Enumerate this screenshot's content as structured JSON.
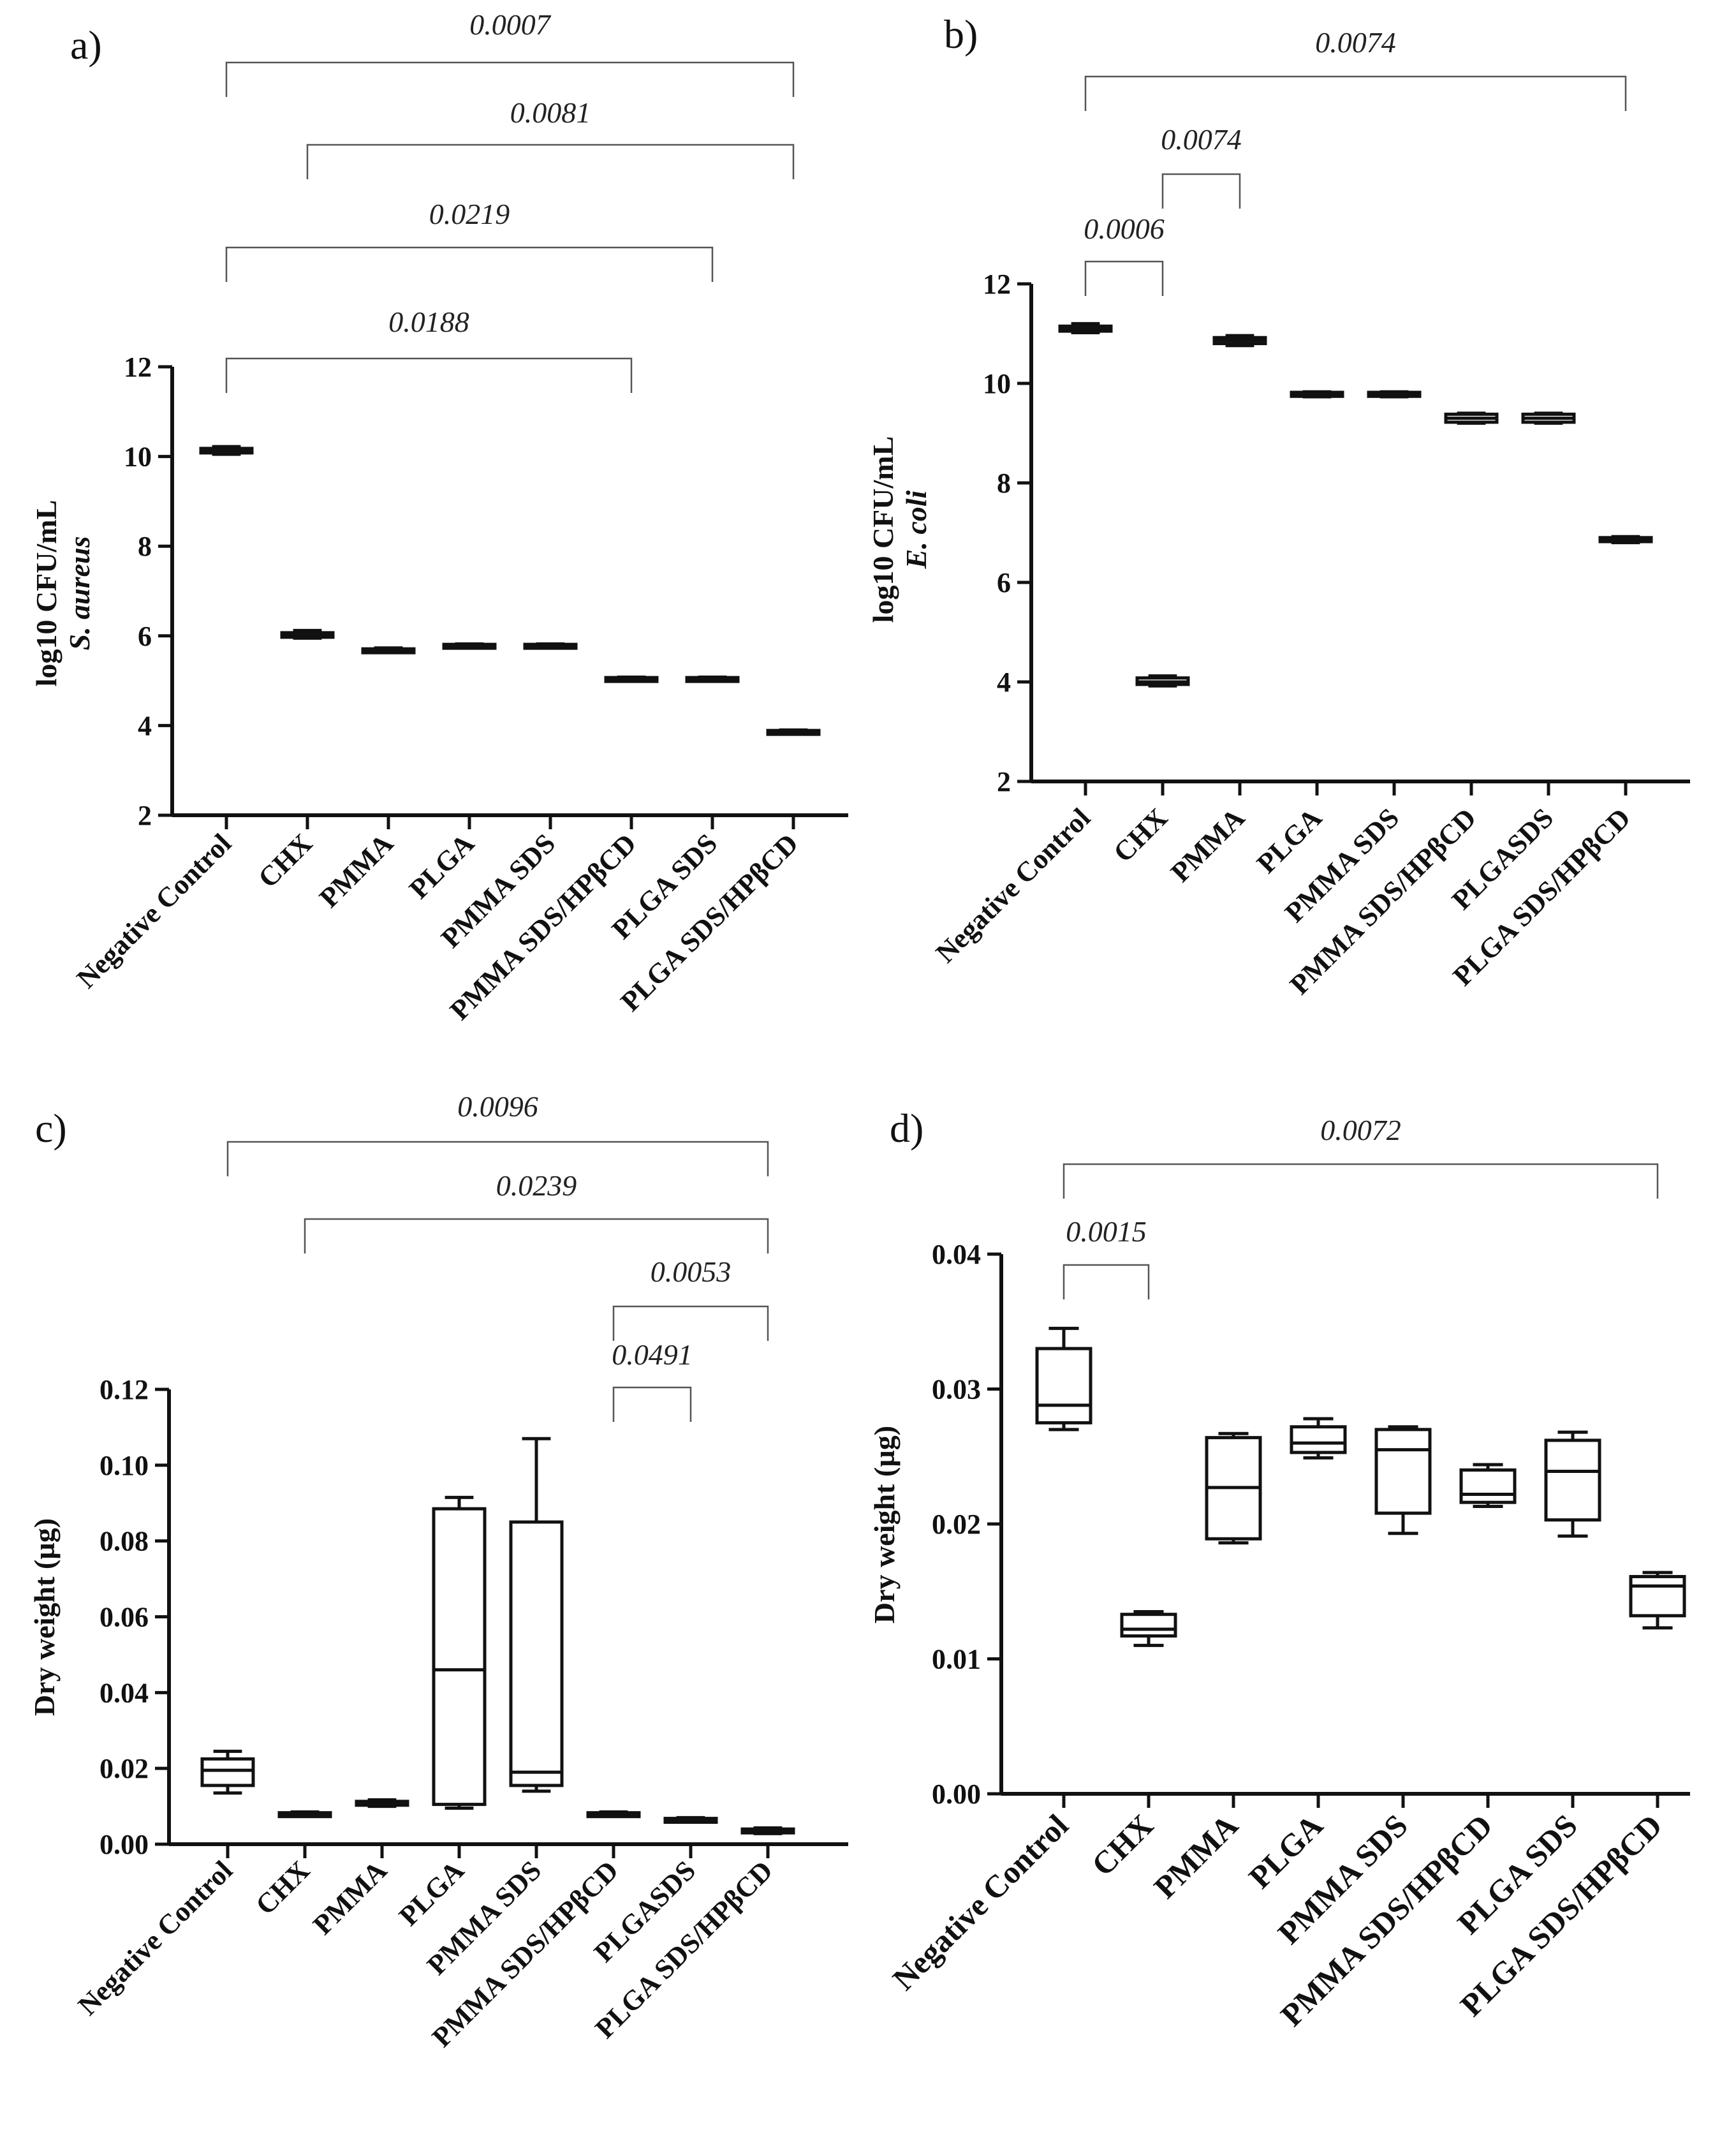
{
  "chart_data": [
    {
      "panel": "a)",
      "type": "box",
      "ylabel_line1": "log10 CFU/mL",
      "ylabel_line2": "S. aureus",
      "ylim": [
        2,
        12
      ],
      "yticks": [
        "2",
        "4",
        "6",
        "8",
        "10",
        "12"
      ],
      "yticks_values": [
        2,
        4,
        6,
        8,
        10,
        12
      ],
      "categories": [
        "Negative Control",
        "CHX",
        "PMMA",
        "PLGA",
        "PMMA SDS",
        "PMMA SDS/HPβCD",
        "PLGA SDS",
        "PLGA SDS/HPβCD"
      ],
      "boxes": [
        {
          "min": 10.05,
          "q1": 10.08,
          "median": 10.13,
          "q3": 10.18,
          "max": 10.22
        },
        {
          "min": 5.95,
          "q1": 5.97,
          "median": 6.02,
          "q3": 6.07,
          "max": 6.12
        },
        {
          "min": 5.63,
          "q1": 5.65,
          "median": 5.68,
          "q3": 5.71,
          "max": 5.73
        },
        {
          "min": 5.74,
          "q1": 5.75,
          "median": 5.78,
          "q3": 5.81,
          "max": 5.82
        },
        {
          "min": 5.74,
          "q1": 5.75,
          "median": 5.78,
          "q3": 5.81,
          "max": 5.82
        },
        {
          "min": 5.0,
          "q1": 5.01,
          "median": 5.04,
          "q3": 5.07,
          "max": 5.08
        },
        {
          "min": 5.0,
          "q1": 5.01,
          "median": 5.04,
          "q3": 5.07,
          "max": 5.08
        },
        {
          "min": 3.82,
          "q1": 3.83,
          "median": 3.86,
          "q3": 3.89,
          "max": 3.9
        }
      ],
      "comparisons": [
        {
          "from": 0,
          "to": 7,
          "p": "0.0007"
        },
        {
          "from": 1,
          "to": 7,
          "p": "0.0081"
        },
        {
          "from": 0,
          "to": 6,
          "p": "0.0219"
        },
        {
          "from": 0,
          "to": 5,
          "p": "0.0188"
        }
      ]
    },
    {
      "panel": "b)",
      "type": "box",
      "ylabel_line1": "log10 CFU/mL",
      "ylabel_line2": "E. coli",
      "ylim": [
        2,
        12
      ],
      "yticks": [
        "2",
        "4",
        "6",
        "8",
        "10",
        "12"
      ],
      "yticks_values": [
        2,
        4,
        6,
        8,
        10,
        12
      ],
      "categories": [
        "Negative Control",
        "CHX",
        "PMMA",
        "PLGA",
        "PMMA SDS",
        "PMMA SDS/HPβCD",
        "PLGASDS",
        "PLGA SDS/HPβCD"
      ],
      "boxes": [
        {
          "min": 11.02,
          "q1": 11.05,
          "median": 11.1,
          "q3": 11.15,
          "max": 11.2
        },
        {
          "min": 3.92,
          "q1": 3.95,
          "median": 4.0,
          "q3": 4.08,
          "max": 4.12
        },
        {
          "min": 10.76,
          "q1": 10.8,
          "median": 10.86,
          "q3": 10.92,
          "max": 10.96
        },
        {
          "min": 9.73,
          "q1": 9.74,
          "median": 9.78,
          "q3": 9.82,
          "max": 9.83
        },
        {
          "min": 9.73,
          "q1": 9.74,
          "median": 9.78,
          "q3": 9.82,
          "max": 9.83
        },
        {
          "min": 9.2,
          "q1": 9.22,
          "median": 9.3,
          "q3": 9.38,
          "max": 9.4
        },
        {
          "min": 9.2,
          "q1": 9.22,
          "median": 9.3,
          "q3": 9.38,
          "max": 9.4
        },
        {
          "min": 6.8,
          "q1": 6.82,
          "median": 6.86,
          "q3": 6.9,
          "max": 6.92
        }
      ],
      "comparisons": [
        {
          "from": 0,
          "to": 7,
          "p": "0.0074"
        },
        {
          "from": 1,
          "to": 2,
          "p": "0.0074"
        },
        {
          "from": 0,
          "to": 1,
          "p": "0.0006"
        }
      ]
    },
    {
      "panel": "c)",
      "type": "box",
      "ylabel_line1": "Dry weight (µg)",
      "ylabel_line2": "",
      "ylim": [
        0,
        0.12
      ],
      "yticks": [
        "0.00",
        "0.02",
        "0.04",
        "0.06",
        "0.08",
        "0.10",
        "0.12"
      ],
      "yticks_values": [
        0,
        0.02,
        0.04,
        0.06,
        0.08,
        0.1,
        0.12
      ],
      "categories": [
        "Negative Control",
        "CHX",
        "PMMA",
        "PLGA",
        "PMMA SDS",
        "PMMA SDS/HPβCD",
        "PLGASDS",
        "PLGA SDS/HPβCD"
      ],
      "boxes": [
        {
          "min": 0.0135,
          "q1": 0.0155,
          "median": 0.0195,
          "q3": 0.0225,
          "max": 0.0245
        },
        {
          "min": 0.0075,
          "q1": 0.0077,
          "median": 0.008,
          "q3": 0.0083,
          "max": 0.0085
        },
        {
          "min": 0.01,
          "q1": 0.0103,
          "median": 0.0108,
          "q3": 0.0113,
          "max": 0.0117
        },
        {
          "min": 0.0095,
          "q1": 0.0105,
          "median": 0.046,
          "q3": 0.0885,
          "max": 0.0915
        },
        {
          "min": 0.014,
          "q1": 0.0155,
          "median": 0.019,
          "q3": 0.085,
          "max": 0.107
        },
        {
          "min": 0.0075,
          "q1": 0.0077,
          "median": 0.008,
          "q3": 0.0083,
          "max": 0.0085
        },
        {
          "min": 0.0062,
          "q1": 0.0063,
          "median": 0.0065,
          "q3": 0.0068,
          "max": 0.007
        },
        {
          "min": 0.0028,
          "q1": 0.003,
          "median": 0.0035,
          "q3": 0.004,
          "max": 0.0043
        }
      ],
      "comparisons": [
        {
          "from": 0,
          "to": 7,
          "p": "0.0096"
        },
        {
          "from": 1,
          "to": 7,
          "p": "0.0239"
        },
        {
          "from": 5,
          "to": 7,
          "p": "0.0053"
        },
        {
          "from": 5,
          "to": 6,
          "p": "0.0491"
        }
      ]
    },
    {
      "panel": "d)",
      "type": "box",
      "ylabel_line1": "Dry weight (µg)",
      "ylabel_line2": "",
      "ylim": [
        0,
        0.04
      ],
      "yticks": [
        "0.00",
        "0.01",
        "0.02",
        "0.03",
        "0.04"
      ],
      "yticks_values": [
        0,
        0.01,
        0.02,
        0.03,
        0.04
      ],
      "categories": [
        "Negative Control",
        "CHX",
        "PMMA",
        "PLGA",
        "PMMA SDS",
        "PMMA SDS/HPβCD",
        "PLGA SDS",
        "PLGA SDS/HPβCD"
      ],
      "boxes": [
        {
          "min": 0.027,
          "q1": 0.0275,
          "median": 0.0288,
          "q3": 0.033,
          "max": 0.0345
        },
        {
          "min": 0.011,
          "q1": 0.0117,
          "median": 0.0122,
          "q3": 0.0133,
          "max": 0.0135
        },
        {
          "min": 0.0186,
          "q1": 0.0189,
          "median": 0.0227,
          "q3": 0.0264,
          "max": 0.0267
        },
        {
          "min": 0.0249,
          "q1": 0.0253,
          "median": 0.026,
          "q3": 0.0272,
          "max": 0.0278
        },
        {
          "min": 0.0193,
          "q1": 0.0208,
          "median": 0.0255,
          "q3": 0.027,
          "max": 0.0272
        },
        {
          "min": 0.0213,
          "q1": 0.0216,
          "median": 0.0222,
          "q3": 0.024,
          "max": 0.0244
        },
        {
          "min": 0.0191,
          "q1": 0.0203,
          "median": 0.0239,
          "q3": 0.0262,
          "max": 0.0268
        },
        {
          "min": 0.0123,
          "q1": 0.0132,
          "median": 0.0154,
          "q3": 0.0161,
          "max": 0.0164
        }
      ],
      "comparisons": [
        {
          "from": 0,
          "to": 7,
          "p": "0.0072"
        },
        {
          "from": 0,
          "to": 1,
          "p": "0.0015"
        }
      ]
    }
  ]
}
